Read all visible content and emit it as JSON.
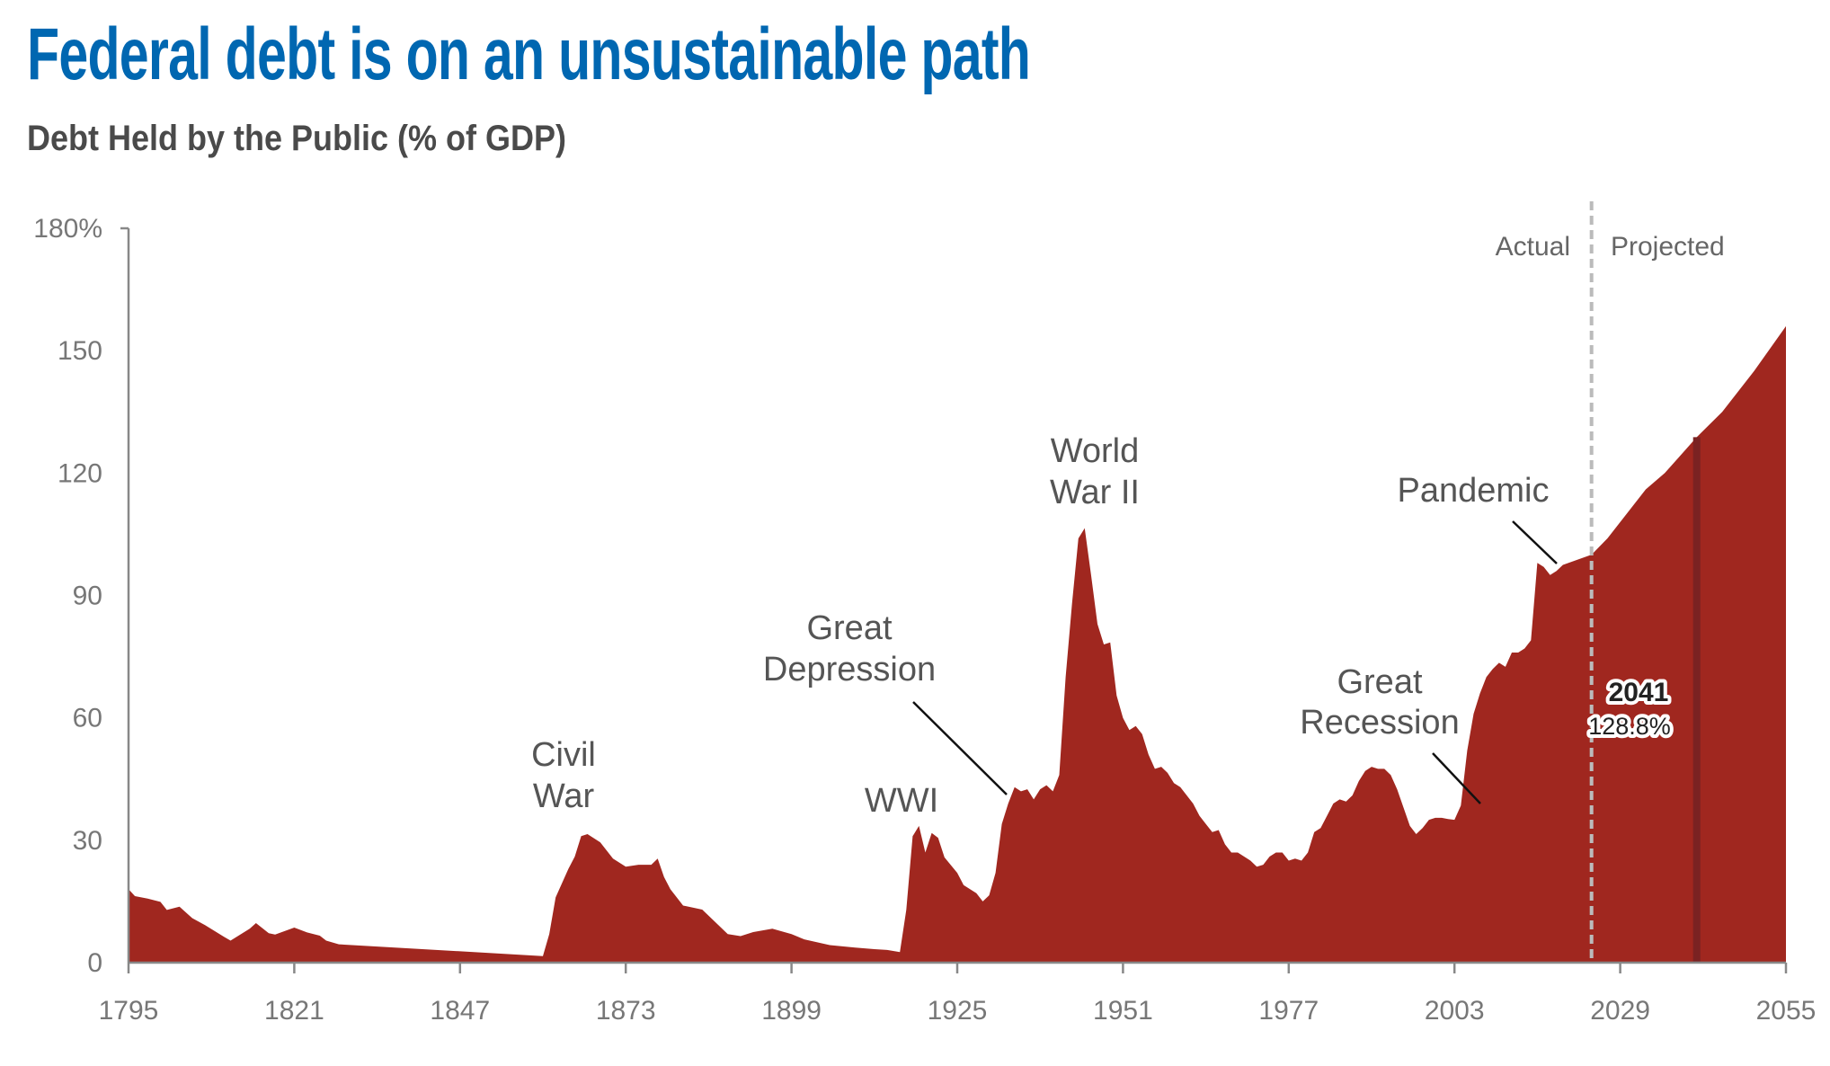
{
  "title": "Federal debt is on an unsustainable path",
  "subtitle": "Debt Held by the Public (% of GDP)",
  "colors": {
    "title": "#0067b1",
    "fill": "#a0271f",
    "marker": "#7a2222",
    "divider": "#bbbbbb"
  },
  "chart_data": {
    "type": "area",
    "title": "Federal debt is on an unsustainable path",
    "ylabel": "Debt Held by the Public (% of GDP)",
    "xlim": [
      1795,
      2055
    ],
    "ylim": [
      0,
      180
    ],
    "x_ticks": [
      "1795",
      "1821",
      "1847",
      "1873",
      "1899",
      "1925",
      "1951",
      "1977",
      "2003",
      "2029",
      "2055"
    ],
    "y_ticks": [
      {
        "v": 180,
        "label": "180%"
      },
      {
        "v": 150,
        "label": "150"
      },
      {
        "v": 120,
        "label": "120"
      },
      {
        "v": 90,
        "label": "90"
      },
      {
        "v": 60,
        "label": "60"
      },
      {
        "v": 30,
        "label": "30"
      },
      {
        "v": 0,
        "label": "0"
      }
    ],
    "actual_projected_split": 2024.5,
    "phase_labels": {
      "actual": "Actual",
      "projected": "Projected"
    },
    "highlight": {
      "year": "2041",
      "value": "128.8%"
    },
    "annotations": {
      "civil_war": [
        "Civil",
        "War"
      ],
      "wwi": [
        "WWI"
      ],
      "great_depression": [
        "Great",
        "Depression"
      ],
      "wwii": [
        "World",
        "War II"
      ],
      "great_recession": [
        "Great",
        "Recession"
      ],
      "pandemic": [
        "Pandemic"
      ]
    },
    "series": [
      [
        1795,
        18
      ],
      [
        1796,
        16.3
      ],
      [
        1798,
        15.7
      ],
      [
        1800,
        14.9
      ],
      [
        1801,
        12.9
      ],
      [
        1803,
        13.7
      ],
      [
        1805,
        10.9
      ],
      [
        1807,
        9.2
      ],
      [
        1810,
        6.3
      ],
      [
        1811,
        5.4
      ],
      [
        1814,
        8.3
      ],
      [
        1815,
        9.7
      ],
      [
        1817,
        7.2
      ],
      [
        1818,
        6.9
      ],
      [
        1821,
        8.6
      ],
      [
        1823,
        7.4
      ],
      [
        1825,
        6.6
      ],
      [
        1826,
        5.4
      ],
      [
        1828,
        4.5
      ],
      [
        1860,
        1.6
      ],
      [
        1861,
        7
      ],
      [
        1862,
        16
      ],
      [
        1864,
        23
      ],
      [
        1865,
        26
      ],
      [
        1866,
        31
      ],
      [
        1867,
        31.5
      ],
      [
        1869,
        29.5
      ],
      [
        1871,
        25.5
      ],
      [
        1873,
        23.5
      ],
      [
        1875,
        24
      ],
      [
        1877,
        24
      ],
      [
        1878,
        25.5
      ],
      [
        1879,
        21
      ],
      [
        1880,
        18
      ],
      [
        1882,
        14
      ],
      [
        1885,
        13
      ],
      [
        1887,
        10
      ],
      [
        1889,
        7
      ],
      [
        1891,
        6.5
      ],
      [
        1893,
        7.5
      ],
      [
        1896,
        8.3
      ],
      [
        1899,
        7
      ],
      [
        1901,
        5.7
      ],
      [
        1905,
        4.3
      ],
      [
        1909,
        3.7
      ],
      [
        1912,
        3.3
      ],
      [
        1914,
        3.1
      ],
      [
        1916,
        2.6
      ],
      [
        1917,
        12.9
      ],
      [
        1918,
        31
      ],
      [
        1919,
        33.5
      ],
      [
        1920,
        27
      ],
      [
        1921,
        31.8
      ],
      [
        1922,
        30.6
      ],
      [
        1923,
        25.8
      ],
      [
        1925,
        22
      ],
      [
        1926,
        19
      ],
      [
        1928,
        17
      ],
      [
        1929,
        15
      ],
      [
        1930,
        16.5
      ],
      [
        1931,
        22
      ],
      [
        1932,
        34
      ],
      [
        1933,
        39
      ],
      [
        1934,
        43
      ],
      [
        1935,
        42
      ],
      [
        1936,
        42.5
      ],
      [
        1937,
        40
      ],
      [
        1938,
        42.5
      ],
      [
        1939,
        43.5
      ],
      [
        1940,
        42
      ],
      [
        1941,
        46
      ],
      [
        1942,
        70
      ],
      [
        1943,
        88
      ],
      [
        1944,
        104
      ],
      [
        1945,
        106.5
      ],
      [
        1946,
        95
      ],
      [
        1947,
        83
      ],
      [
        1948,
        78
      ],
      [
        1949,
        78.5
      ],
      [
        1950,
        65.5
      ],
      [
        1951,
        60
      ],
      [
        1952,
        57
      ],
      [
        1953,
        58
      ],
      [
        1954,
        56
      ],
      [
        1955,
        51
      ],
      [
        1956,
        47.5
      ],
      [
        1957,
        48
      ],
      [
        1958,
        46.5
      ],
      [
        1959,
        44
      ],
      [
        1960,
        43
      ],
      [
        1961,
        41
      ],
      [
        1962,
        39
      ],
      [
        1963,
        36
      ],
      [
        1964,
        34
      ],
      [
        1965,
        32
      ],
      [
        1966,
        32.5
      ],
      [
        1967,
        29
      ],
      [
        1968,
        27
      ],
      [
        1969,
        27
      ],
      [
        1970,
        26
      ],
      [
        1971,
        25
      ],
      [
        1972,
        23.5
      ],
      [
        1973,
        24
      ],
      [
        1974,
        26
      ],
      [
        1975,
        27
      ],
      [
        1976,
        27
      ],
      [
        1977,
        25
      ],
      [
        1978,
        25.5
      ],
      [
        1979,
        25
      ],
      [
        1980,
        27
      ],
      [
        1981,
        32
      ],
      [
        1982,
        33
      ],
      [
        1983,
        36
      ],
      [
        1984,
        39
      ],
      [
        1985,
        40
      ],
      [
        1986,
        39.5
      ],
      [
        1987,
        41
      ],
      [
        1988,
        44.5
      ],
      [
        1989,
        47
      ],
      [
        1990,
        48
      ],
      [
        1991,
        47.5
      ],
      [
        1992,
        47.5
      ],
      [
        1993,
        46
      ],
      [
        1994,
        42.5
      ],
      [
        1995,
        38
      ],
      [
        1996,
        33.5
      ],
      [
        1997,
        31.5
      ],
      [
        1998,
        33
      ],
      [
        1999,
        35
      ],
      [
        2000,
        35.5
      ],
      [
        2001,
        35.5
      ],
      [
        2002,
        35.2
      ],
      [
        2003,
        35
      ],
      [
        2004,
        38.5
      ],
      [
        2005,
        52
      ],
      [
        2006,
        61
      ],
      [
        2007,
        66
      ],
      [
        2008,
        70
      ],
      [
        2009,
        72
      ],
      [
        2010,
        73.5
      ],
      [
        2011,
        72.5
      ],
      [
        2012,
        76
      ],
      [
        2013,
        76
      ],
      [
        2014,
        77
      ],
      [
        2015,
        79
      ],
      [
        2016,
        98
      ],
      [
        2017,
        97
      ],
      [
        2018,
        95
      ],
      [
        2019,
        96
      ],
      [
        2020,
        97.5
      ],
      [
        2024.5,
        100
      ],
      [
        2027,
        104
      ],
      [
        2030,
        110
      ],
      [
        2033,
        116
      ],
      [
        2036,
        120
      ],
      [
        2041,
        128.8
      ],
      [
        2045,
        135
      ],
      [
        2050,
        145
      ],
      [
        2055,
        156
      ]
    ]
  }
}
